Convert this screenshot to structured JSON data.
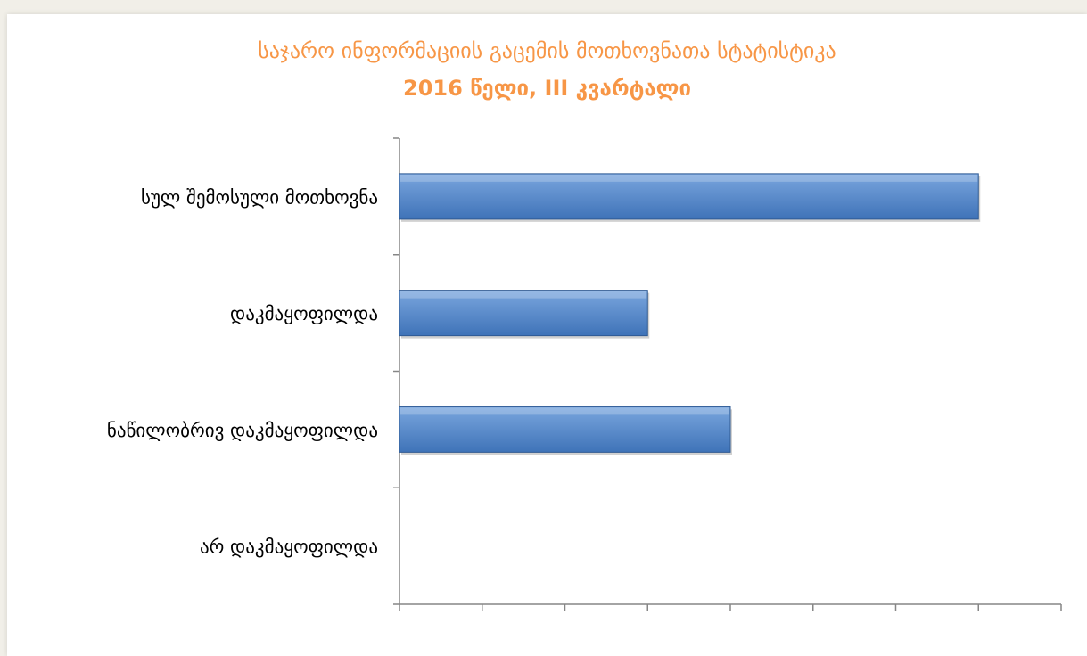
{
  "chart_data": {
    "type": "bar",
    "orientation": "horizontal",
    "title": "საჯარო ინფორმაციის გაცემის მოთხოვნათა სტატისტიკა",
    "subtitle": "2016 წელი, III კვარტალი",
    "categories": [
      "სულ შემოსული მოთხოვნა",
      "დაკმაყოფილდა",
      "ნაწილობრივ დაკმაყოფილდა",
      "არ დაკმაყოფილდა"
    ],
    "values": [
      7,
      3,
      4,
      0
    ],
    "xlim": [
      0,
      8
    ],
    "xticks": [
      0,
      1,
      2,
      3,
      4,
      5,
      6,
      7,
      8
    ],
    "tick_labels_visible": false,
    "grid": false,
    "legend": "none",
    "colors": {
      "bar_fill_top": "#7aa6de",
      "bar_fill_bottom": "#3f73b8",
      "bar_stroke": "#2f5a93",
      "title": "#f79646",
      "axis": "#868686"
    }
  }
}
